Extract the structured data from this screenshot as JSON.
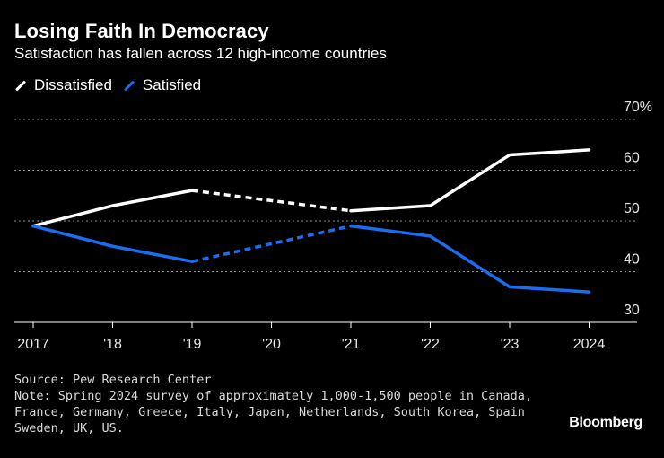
{
  "chart_data": {
    "type": "line",
    "title": "Losing Faith In Democracy",
    "subtitle": "Satisfaction has fallen across 12 high-income countries",
    "categories": [
      "2017",
      "'18",
      "'19",
      "'20",
      "'21",
      "'22",
      "'23",
      "2024"
    ],
    "series": [
      {
        "name": "Dissatisfied",
        "color": "#ffffff",
        "values": [
          49,
          53,
          56,
          null,
          52,
          53,
          63,
          64
        ],
        "dashed_between": [
          "'19",
          "'21"
        ]
      },
      {
        "name": "Satisfied",
        "color": "#1a6cf0",
        "values": [
          49,
          45,
          42,
          null,
          49,
          47,
          37,
          36
        ],
        "dashed_between": [
          "'19",
          "'21"
        ]
      }
    ],
    "y_ticks": [
      "70%",
      "60",
      "50",
      "40",
      "30"
    ],
    "ylim": [
      30,
      70
    ],
    "grid": true,
    "legend": "top-left",
    "xlabel": "",
    "ylabel": ""
  },
  "footer": {
    "source": "Source: Pew Research Center",
    "note_lines": [
      "Note: Spring 2024 survey of approximately 1,000-1,500 people in Canada,",
      "France, Germany, Greece, Italy, Japan, Netherlands, South Korea, Spain",
      "Sweden, UK, US."
    ]
  },
  "brand": "Bloomberg"
}
